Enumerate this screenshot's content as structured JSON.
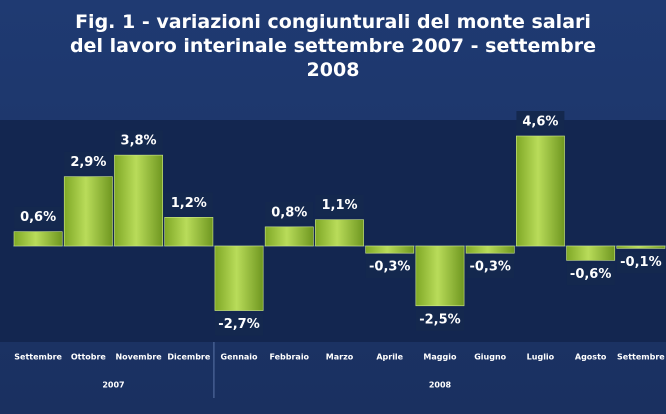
{
  "chart_data": {
    "type": "bar",
    "title": "Fig. 1 - variazioni congiunturali del monte salari del lavoro interinale settembre 2007 - settembre 2008",
    "categories": [
      "Settembre",
      "Ottobre",
      "Novembre",
      "Dicembre",
      "Gennaio",
      "Febbraio",
      "Marzo",
      "Aprile",
      "Maggio",
      "Giugno",
      "Luglio",
      "Agosto",
      "Settembre"
    ],
    "groups": [
      {
        "label": "2007",
        "size": 4
      },
      {
        "label": "2008",
        "size": 9
      }
    ],
    "values": [
      0.6,
      2.9,
      3.8,
      1.2,
      -2.7,
      0.8,
      1.1,
      -0.3,
      -2.5,
      -0.3,
      4.6,
      -0.6,
      -0.1
    ],
    "value_labels": [
      "0,6%",
      "2,9%",
      "3,8%",
      "1,2%",
      "-2,7%",
      "0,8%",
      "1,1%",
      "-0,3%",
      "-2,5%",
      "-0,3%",
      "4,6%",
      "-0,6%",
      "-0,1%"
    ],
    "color": "#9bc23c"
  }
}
